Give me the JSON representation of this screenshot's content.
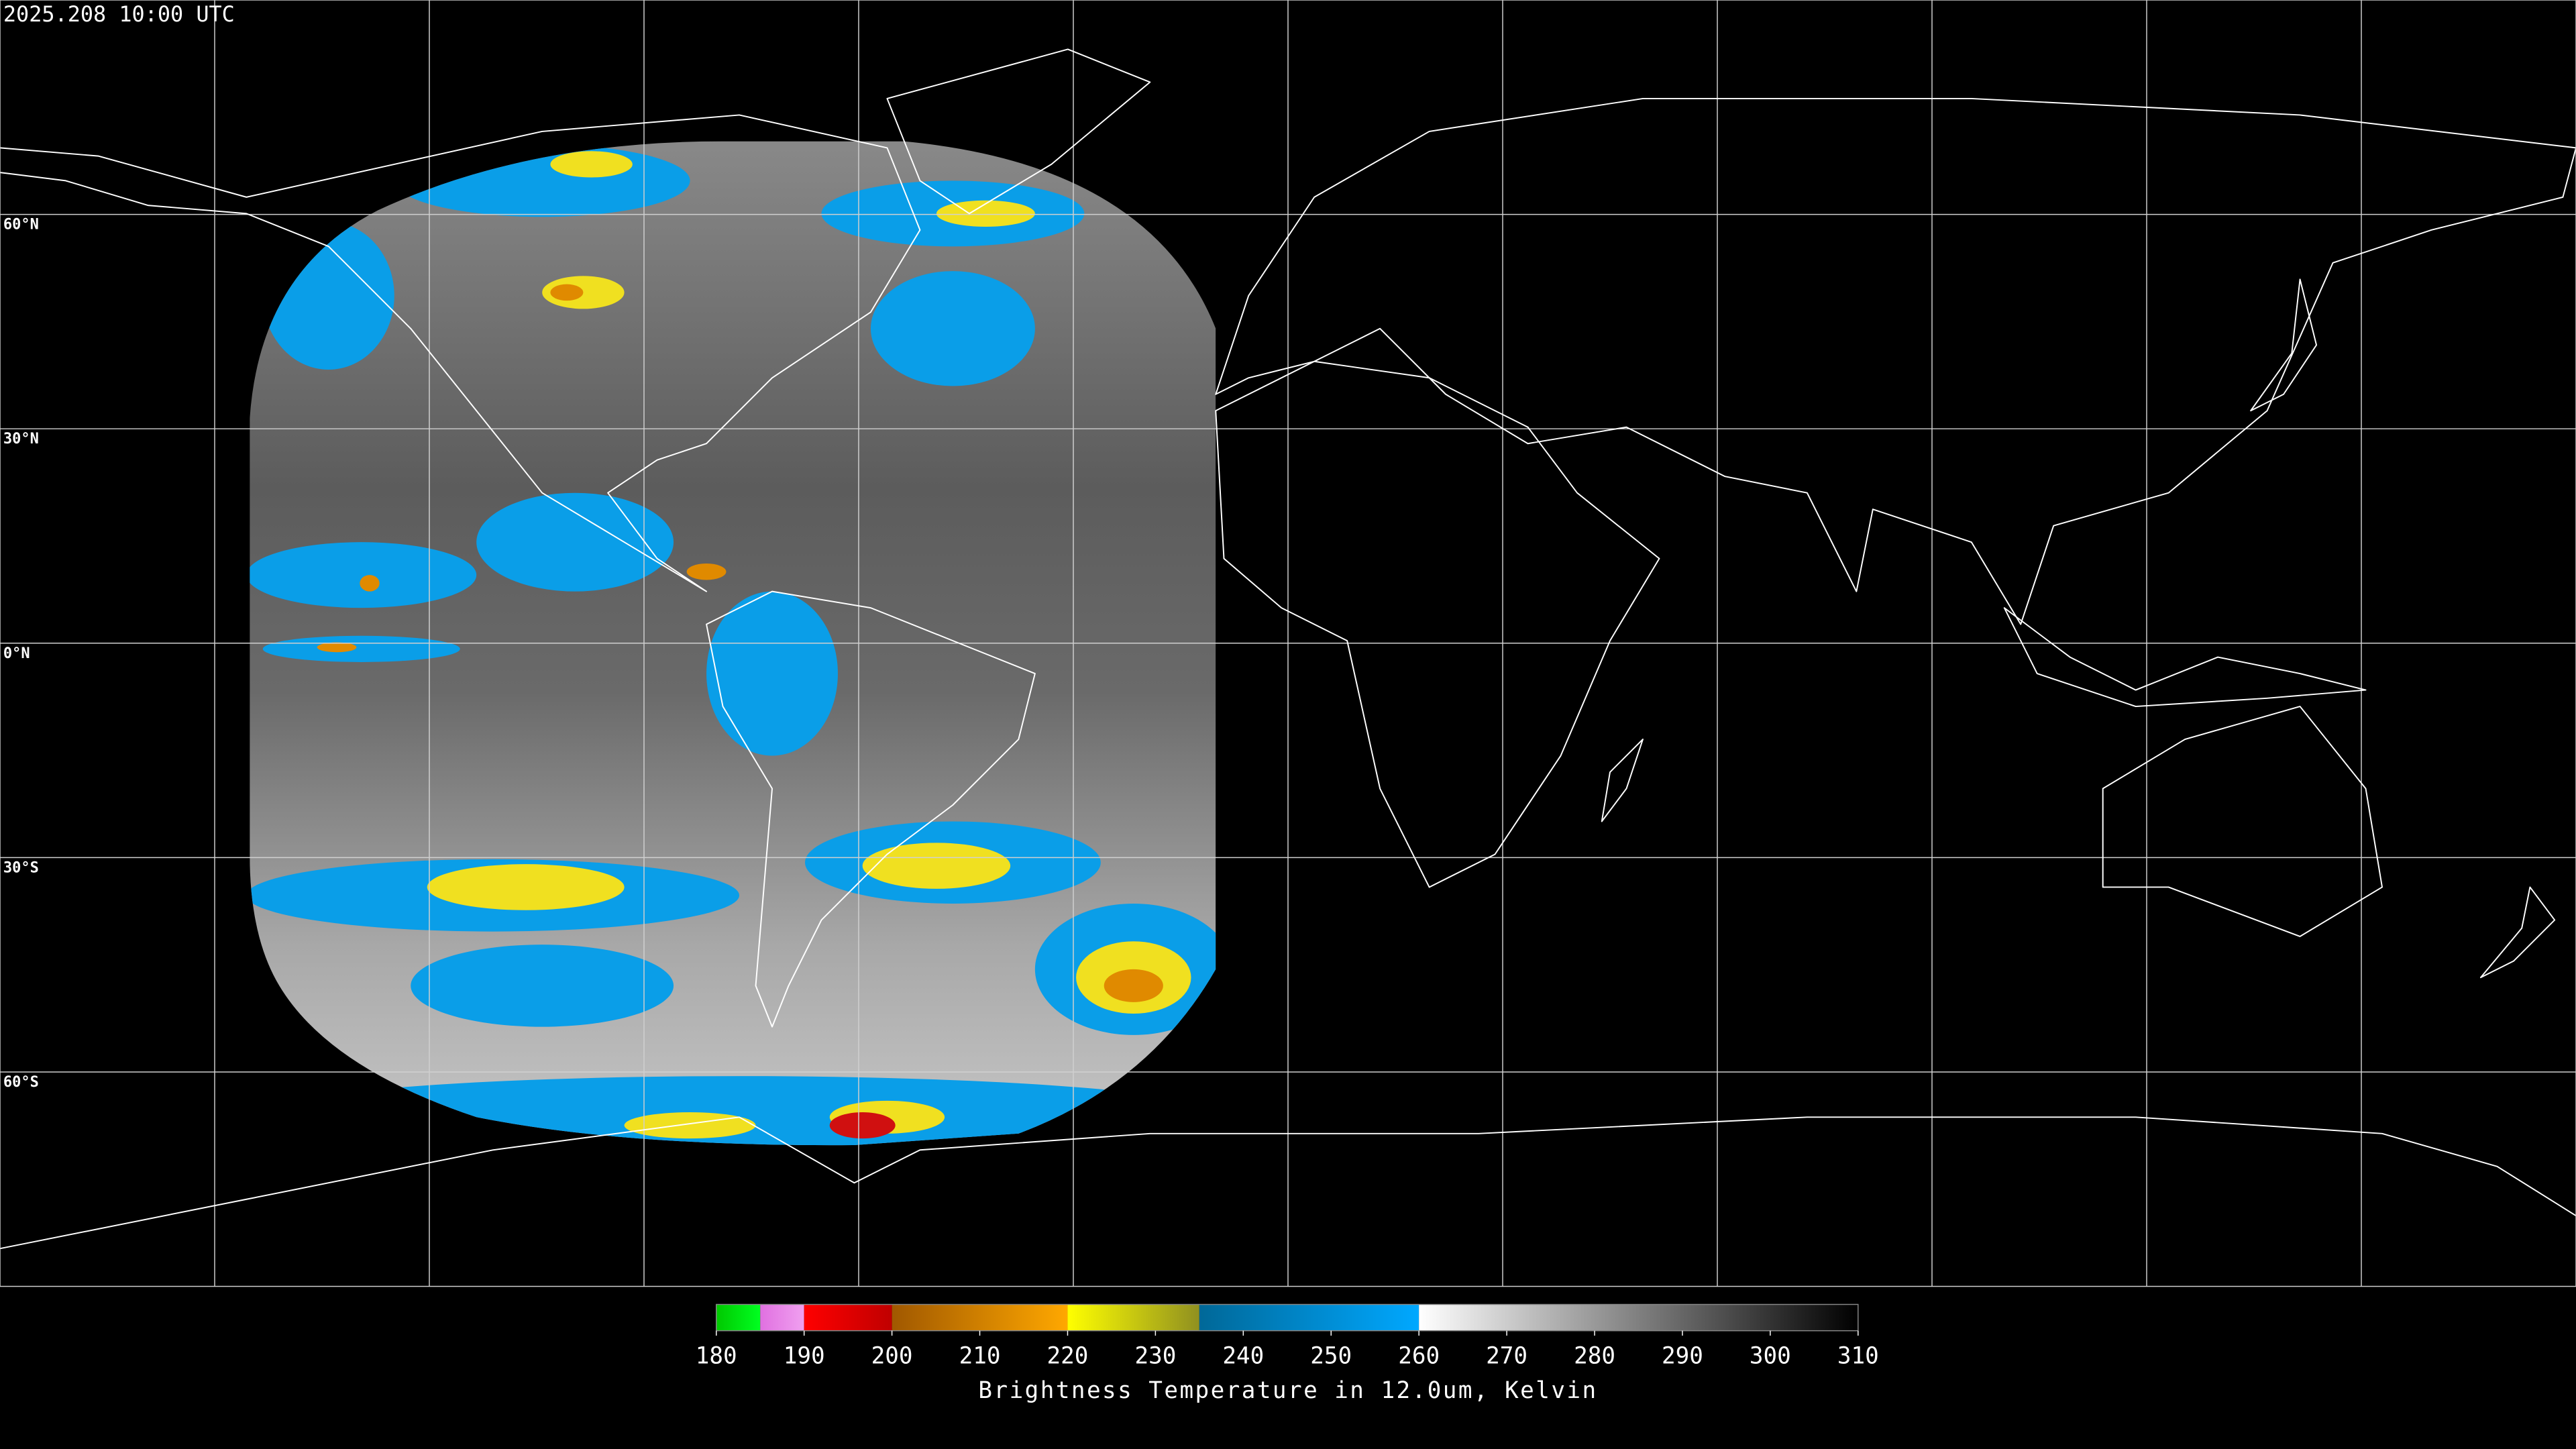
{
  "header": {
    "timestamp": "2025.208 10:00 UTC"
  },
  "map": {
    "projection": "equirectangular",
    "lon_range": [
      -180,
      180
    ],
    "lat_range": [
      -90,
      90
    ],
    "grid_step_degrees": 30,
    "latitude_labels": [
      {
        "value": 60,
        "label": "60°N"
      },
      {
        "value": 30,
        "label": "30°N"
      },
      {
        "value": 0,
        "label": "0°N"
      },
      {
        "value": -30,
        "label": "30°S"
      },
      {
        "value": -60,
        "label": "60°S"
      }
    ]
  },
  "colorbar": {
    "range": [
      180,
      310
    ],
    "ticks": [
      180,
      190,
      200,
      210,
      220,
      230,
      240,
      250,
      260,
      270,
      280,
      290,
      300,
      310
    ],
    "label": "Brightness Temperature in 12.0um, Kelvin",
    "segments": [
      {
        "from": 180,
        "to": 185,
        "start_color": "#00c800",
        "end_color": "#00ff20"
      },
      {
        "from": 185,
        "to": 190,
        "start_color": "#e070e0",
        "end_color": "#f0a0f0"
      },
      {
        "from": 190,
        "to": 200,
        "start_color": "#ff0000",
        "end_color": "#c00000"
      },
      {
        "from": 200,
        "to": 220,
        "start_color": "#a05800",
        "end_color": "#ffa800"
      },
      {
        "from": 220,
        "to": 235,
        "start_color": "#ffff00",
        "end_color": "#909020"
      },
      {
        "from": 235,
        "to": 260,
        "start_color": "#006898",
        "end_color": "#00a8ff"
      },
      {
        "from": 260,
        "to": 310,
        "start_color": "#ffffff",
        "end_color": "#000000"
      }
    ]
  }
}
